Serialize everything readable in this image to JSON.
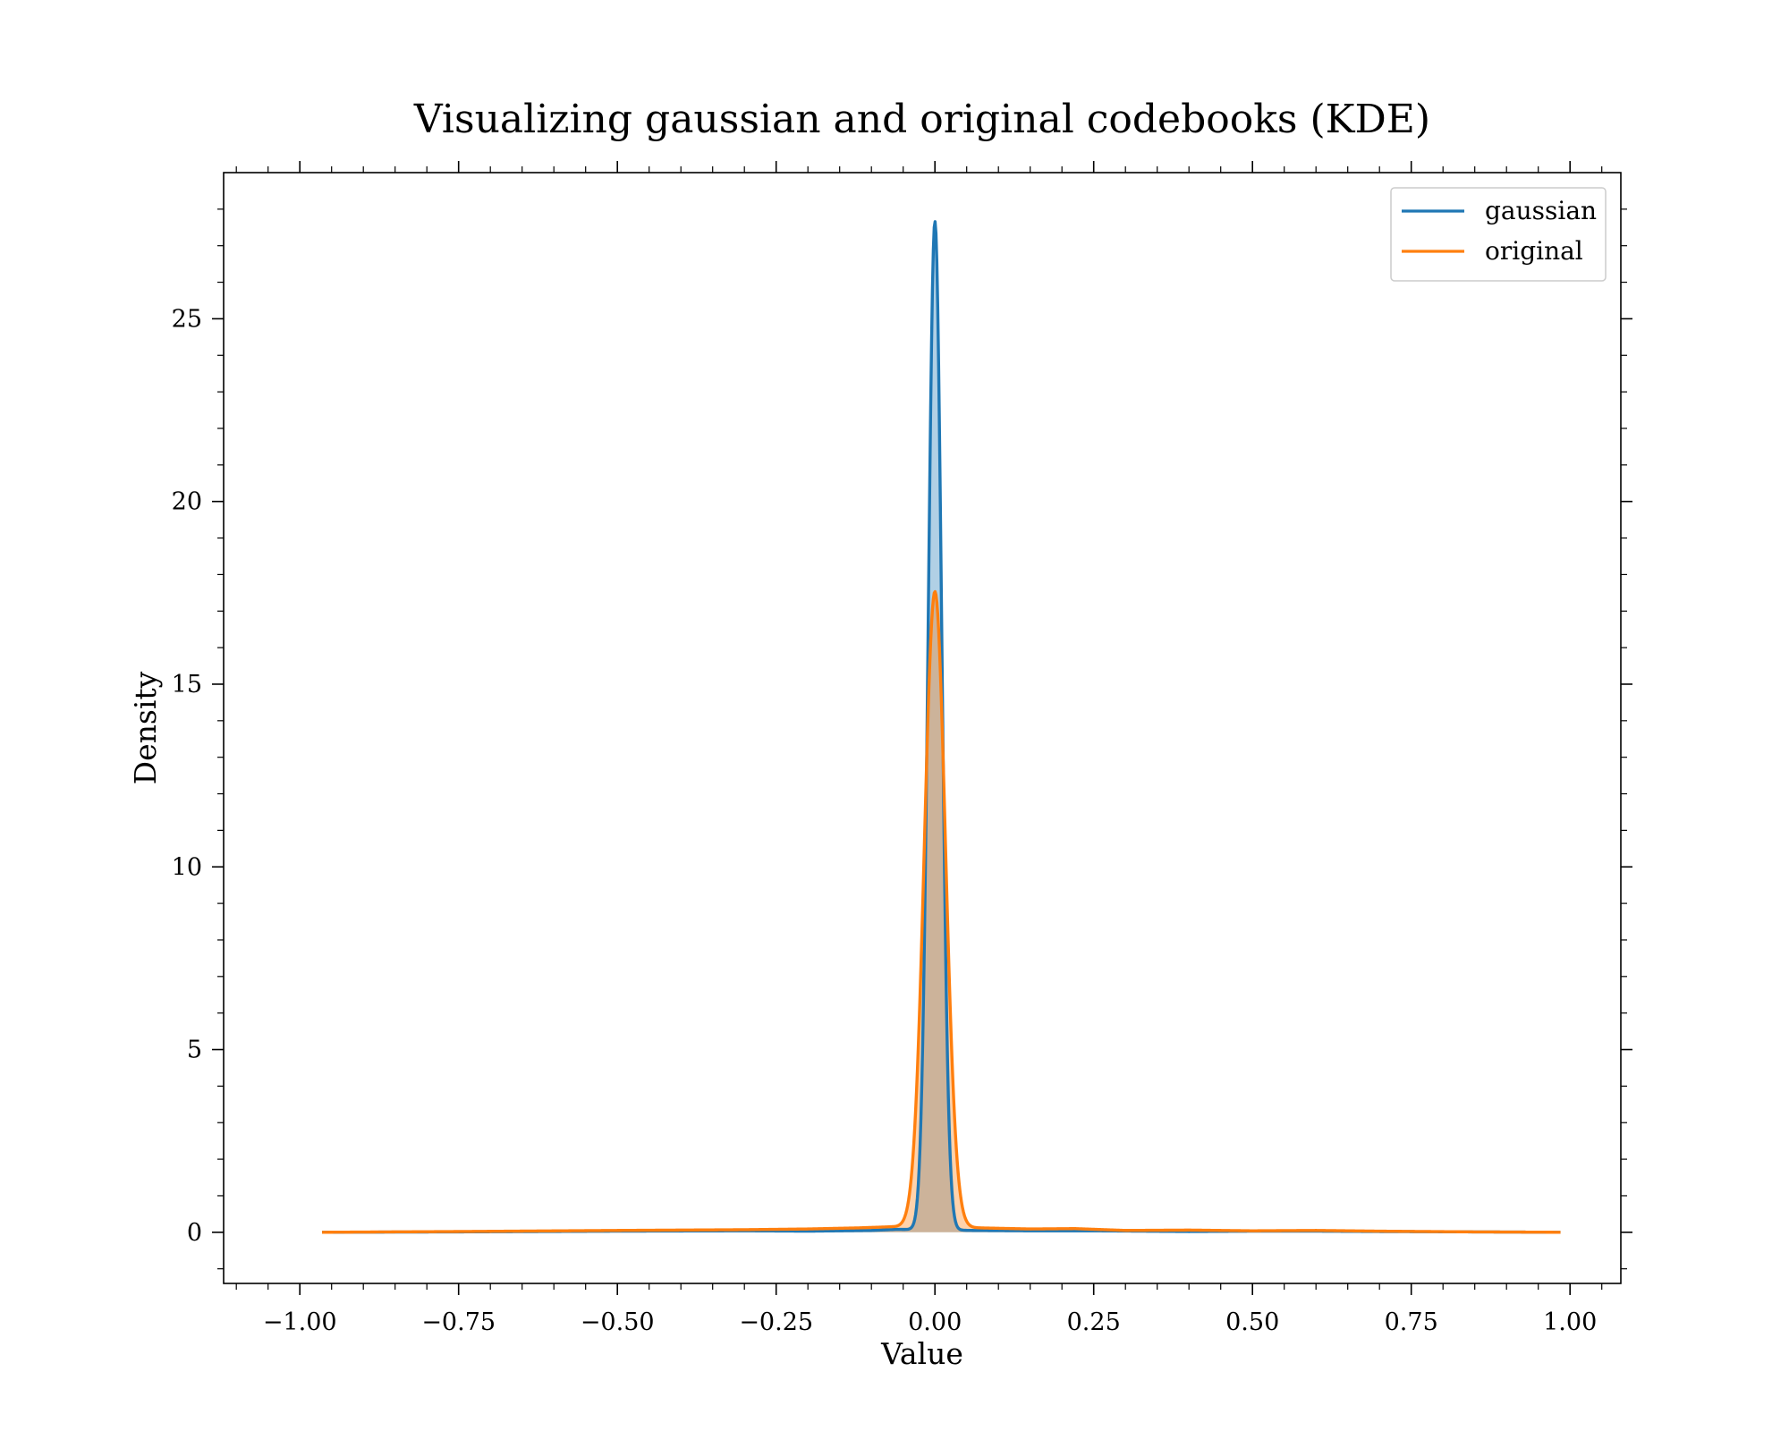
{
  "chart_data": {
    "type": "area",
    "title": "Visualizing gaussian and original codebooks (KDE)",
    "xlabel": "Value",
    "ylabel": "Density",
    "xlim": [
      -1.12,
      1.08
    ],
    "ylim": [
      -1.4,
      29.0
    ],
    "xticks": [
      -1.0,
      -0.75,
      -0.5,
      -0.25,
      0.0,
      0.25,
      0.5,
      0.75,
      1.0
    ],
    "xtick_labels": [
      "−1.00",
      "−0.75",
      "−0.50",
      "−0.25",
      "0.00",
      "0.25",
      "0.50",
      "0.75",
      "1.00"
    ],
    "yticks": [
      0,
      5,
      10,
      15,
      20,
      25
    ],
    "ytick_labels": [
      "0",
      "5",
      "10",
      "15",
      "20",
      "25"
    ],
    "x_range": [
      -0.965,
      0.985
    ],
    "grid": false,
    "legend_position": "top-right",
    "series": [
      {
        "name": "gaussian",
        "color": "#1f77b4",
        "fill": true,
        "peak_x": 0.0,
        "peak_y": 27.6,
        "sigma": 0.0105,
        "baseline": [
          [
            -0.965,
            0.0
          ],
          [
            -0.75,
            0.01
          ],
          [
            -0.5,
            0.03
          ],
          [
            -0.3,
            0.04
          ],
          [
            -0.2,
            0.03
          ],
          [
            -0.1,
            0.05
          ],
          [
            -0.06,
            0.08
          ],
          [
            0.06,
            0.05
          ],
          [
            0.15,
            0.04
          ],
          [
            0.25,
            0.04
          ],
          [
            0.4,
            0.02
          ],
          [
            0.5,
            0.03
          ],
          [
            0.6,
            0.03
          ],
          [
            0.7,
            0.02
          ],
          [
            0.85,
            0.01
          ],
          [
            0.985,
            0.0
          ]
        ]
      },
      {
        "name": "original",
        "color": "#ff7f0e",
        "fill": true,
        "peak_x": 0.0,
        "peak_y": 17.4,
        "sigma": 0.0165,
        "baseline": [
          [
            -0.965,
            0.0
          ],
          [
            -0.75,
            0.02
          ],
          [
            -0.5,
            0.05
          ],
          [
            -0.3,
            0.07
          ],
          [
            -0.2,
            0.09
          ],
          [
            -0.12,
            0.12
          ],
          [
            -0.07,
            0.15
          ],
          [
            0.07,
            0.12
          ],
          [
            0.15,
            0.09
          ],
          [
            0.22,
            0.1
          ],
          [
            0.3,
            0.05
          ],
          [
            0.4,
            0.06
          ],
          [
            0.5,
            0.04
          ],
          [
            0.6,
            0.05
          ],
          [
            0.7,
            0.03
          ],
          [
            0.85,
            0.01
          ],
          [
            0.985,
            0.0
          ]
        ]
      }
    ]
  }
}
